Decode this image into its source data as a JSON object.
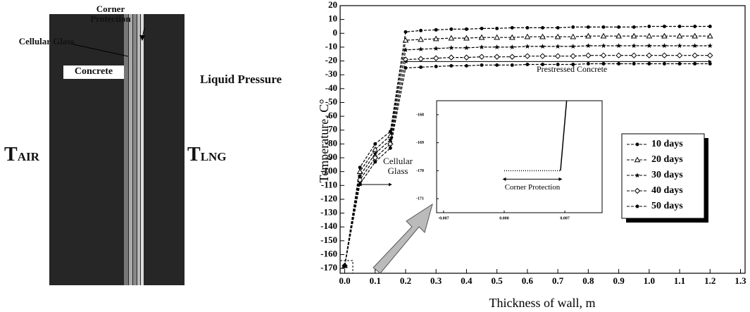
{
  "diagram": {
    "corner_protection": "Corner Protection",
    "cellular_glass": "Cellular Glass",
    "concrete": "Concrete",
    "liquid_pressure": "Liquid Pressure",
    "t_air": {
      "main": "T",
      "sub": "AIR"
    },
    "t_lng": {
      "main": "T",
      "sub": "LNG"
    }
  },
  "chart_data": [
    {
      "type": "line",
      "x_label": "Thickness of wall, m",
      "y_label": "Temperature, C°",
      "xlim": [
        -0.015,
        1.315
      ],
      "ylim": [
        -173.5,
        20
      ],
      "xticks": [
        {
          "value": 0,
          "label": "0.0"
        },
        0.1,
        0.2,
        0.3,
        0.4,
        0.5,
        0.6,
        0.7,
        0.8,
        0.9,
        {
          "value": 1,
          "label": "1.0"
        },
        1.1,
        1.2,
        1.3
      ],
      "yticks": [
        -170,
        -160,
        -150,
        -140,
        -130,
        -120,
        -110,
        -100,
        -90,
        -80,
        -70,
        -60,
        -50,
        -40,
        -30,
        -20,
        -10,
        0,
        10,
        20
      ],
      "legend": "right",
      "annotations": [
        "Cellular Glass",
        "Prestressed Concrete"
      ],
      "x": [
        0,
        0.05,
        0.1,
        0.15,
        0.2,
        0.25,
        0.3,
        0.35,
        0.4,
        0.45,
        0.5,
        0.55,
        0.6,
        0.65,
        0.7,
        0.75,
        0.8,
        0.85,
        0.9,
        0.95,
        1.0,
        1.05,
        1.1,
        1.15,
        1.2
      ],
      "series": [
        {
          "name": "10 days",
          "color": "#000000",
          "marker": "dot",
          "values": [
            -168,
            -97,
            -80,
            -71,
            1,
            2,
            2.5,
            3,
            3,
            3.5,
            3.5,
            4,
            4,
            4,
            4,
            4.5,
            4.5,
            4.5,
            4.5,
            4.5,
            5,
            5,
            5,
            5,
            5
          ]
        },
        {
          "name": "20 days",
          "color": "#000000",
          "marker": "triangle",
          "values": [
            -168,
            -100,
            -84,
            -74,
            -5,
            -4.5,
            -4,
            -3.5,
            -3.5,
            -3,
            -3,
            -3,
            -2.5,
            -2.5,
            -2.5,
            -2.5,
            -2,
            -2,
            -2,
            -2,
            -2,
            -2,
            -2,
            -2,
            -2
          ]
        },
        {
          "name": "30 days",
          "color": "#000000",
          "marker": "star",
          "values": [
            -168,
            -103,
            -87,
            -77,
            -12,
            -11.5,
            -11,
            -10.5,
            -10.5,
            -10,
            -10,
            -10,
            -9.5,
            -9.5,
            -9.5,
            -9.5,
            -9,
            -9,
            -9,
            -9,
            -9,
            -9,
            -9,
            -9,
            -9
          ]
        },
        {
          "name": "40 days",
          "color": "#000000",
          "marker": "diamond",
          "values": [
            -168,
            -106,
            -90,
            -80,
            -19,
            -18.5,
            -18,
            -17.5,
            -17.5,
            -17,
            -17,
            -17,
            -16.5,
            -16.5,
            -16.5,
            -16.5,
            -16,
            -16,
            -16,
            -16,
            -16,
            -16,
            -16,
            -16,
            -16
          ]
        },
        {
          "name": "50 days",
          "color": "#000000",
          "marker": "dot",
          "values": [
            -168,
            -109,
            -93,
            -83,
            -25,
            -24.5,
            -24,
            -23.5,
            -23.5,
            -23,
            -23,
            -23,
            -22.5,
            -22.5,
            -22.5,
            -22.5,
            -22,
            -22,
            -22,
            -22,
            -22,
            -22,
            -22,
            -22,
            -22
          ]
        }
      ]
    },
    {
      "type": "line",
      "xlim": [
        -0.0078,
        0.0113
      ],
      "ylim": [
        -171.5,
        -167.5
      ],
      "xticks": [
        -0.007,
        {
          "value": 0,
          "label": "0.000"
        },
        0.007
      ],
      "yticks": [
        -168,
        -169,
        -170,
        -171
      ],
      "annotations": [
        "Corner Protection"
      ],
      "series": [
        {
          "color": "#000000",
          "style": "dotted",
          "x": [
            0,
            0.0065
          ],
          "values": [
            -170,
            -170
          ]
        },
        {
          "color": "#000000",
          "style": "solid",
          "x": [
            0.0065,
            0.0072
          ],
          "values": [
            -170,
            -167.5
          ]
        }
      ]
    }
  ]
}
